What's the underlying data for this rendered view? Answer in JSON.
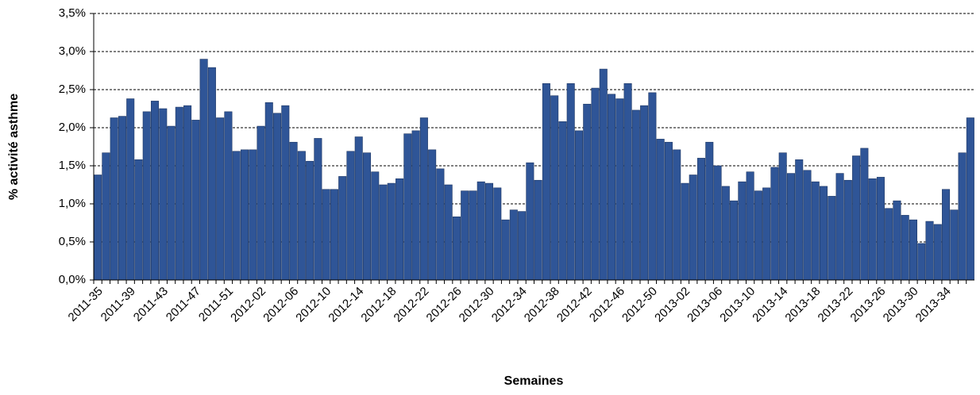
{
  "chart_data": {
    "type": "bar",
    "x_label": "Semaines",
    "y_label": "% activité asthme",
    "color": "#2f5597",
    "grid": true,
    "ylim": [
      0,
      3.5
    ],
    "yticks": [
      {
        "value": 0,
        "label": "0,0%"
      },
      {
        "value": 0.5,
        "label": "0,5%"
      },
      {
        "value": 1,
        "label": "1,0%"
      },
      {
        "value": 1.5,
        "label": "1,5%"
      },
      {
        "value": 2,
        "label": "2,0%"
      },
      {
        "value": 2.5,
        "label": "2,5%"
      },
      {
        "value": 3,
        "label": "3,0%"
      },
      {
        "value": 3.5,
        "label": "3,5%"
      }
    ],
    "categories": [
      "2011-35",
      null,
      null,
      null,
      "2011-39",
      null,
      null,
      null,
      "2011-43",
      null,
      null,
      null,
      "2011-47",
      null,
      null,
      null,
      "2011-51",
      null,
      null,
      null,
      "2012-02",
      null,
      null,
      null,
      "2012-06",
      null,
      null,
      null,
      "2012-10",
      null,
      null,
      null,
      "2012-14",
      null,
      null,
      null,
      "2012-18",
      null,
      null,
      null,
      "2012-22",
      null,
      null,
      null,
      "2012-26",
      null,
      null,
      null,
      "2012-30",
      null,
      null,
      null,
      "2012-34",
      null,
      null,
      null,
      "2012-38",
      null,
      null,
      null,
      "2012-42",
      null,
      null,
      null,
      "2012-46",
      null,
      null,
      null,
      "2012-50",
      null,
      null,
      null,
      "2013-02",
      null,
      null,
      null,
      "2013-06",
      null,
      null,
      null,
      "2013-10",
      null,
      null,
      null,
      "2013-14",
      null,
      null,
      null,
      "2013-18",
      null,
      null,
      null,
      "2013-22",
      null,
      null,
      null,
      "2013-26",
      null,
      null,
      null,
      "2013-30",
      null,
      null,
      null,
      "2013-34",
      null,
      null,
      null
    ],
    "values": [
      1.38,
      1.67,
      2.13,
      2.15,
      2.38,
      1.58,
      2.21,
      2.35,
      2.25,
      2.02,
      2.27,
      2.29,
      2.1,
      2.9,
      2.79,
      2.13,
      2.21,
      1.69,
      1.71,
      1.71,
      2.02,
      2.33,
      2.19,
      2.29,
      1.81,
      1.69,
      1.56,
      1.86,
      1.19,
      1.19,
      1.36,
      1.69,
      1.88,
      1.67,
      1.42,
      1.25,
      1.27,
      1.33,
      1.92,
      1.96,
      2.13,
      1.71,
      1.46,
      1.25,
      0.83,
      1.17,
      1.17,
      1.29,
      1.27,
      1.21,
      0.79,
      0.92,
      0.9,
      1.54,
      1.31,
      2.58,
      2.42,
      2.08,
      2.58,
      1.96,
      2.31,
      2.52,
      2.77,
      2.44,
      2.38,
      2.58,
      2.23,
      2.29,
      2.46,
      1.85,
      1.81,
      1.71,
      1.27,
      1.38,
      1.6,
      1.81,
      1.5,
      1.23,
      1.04,
      1.29,
      1.42,
      1.17,
      1.21,
      1.48,
      1.67,
      1.4,
      1.58,
      1.44,
      1.29,
      1.23,
      1.1,
      1.4,
      1.31,
      1.63,
      1.73,
      1.33,
      1.35,
      0.94,
      1.04,
      0.85,
      0.79,
      0.48,
      0.77,
      0.73,
      1.19,
      0.92,
      1.67,
      2.13
    ]
  }
}
